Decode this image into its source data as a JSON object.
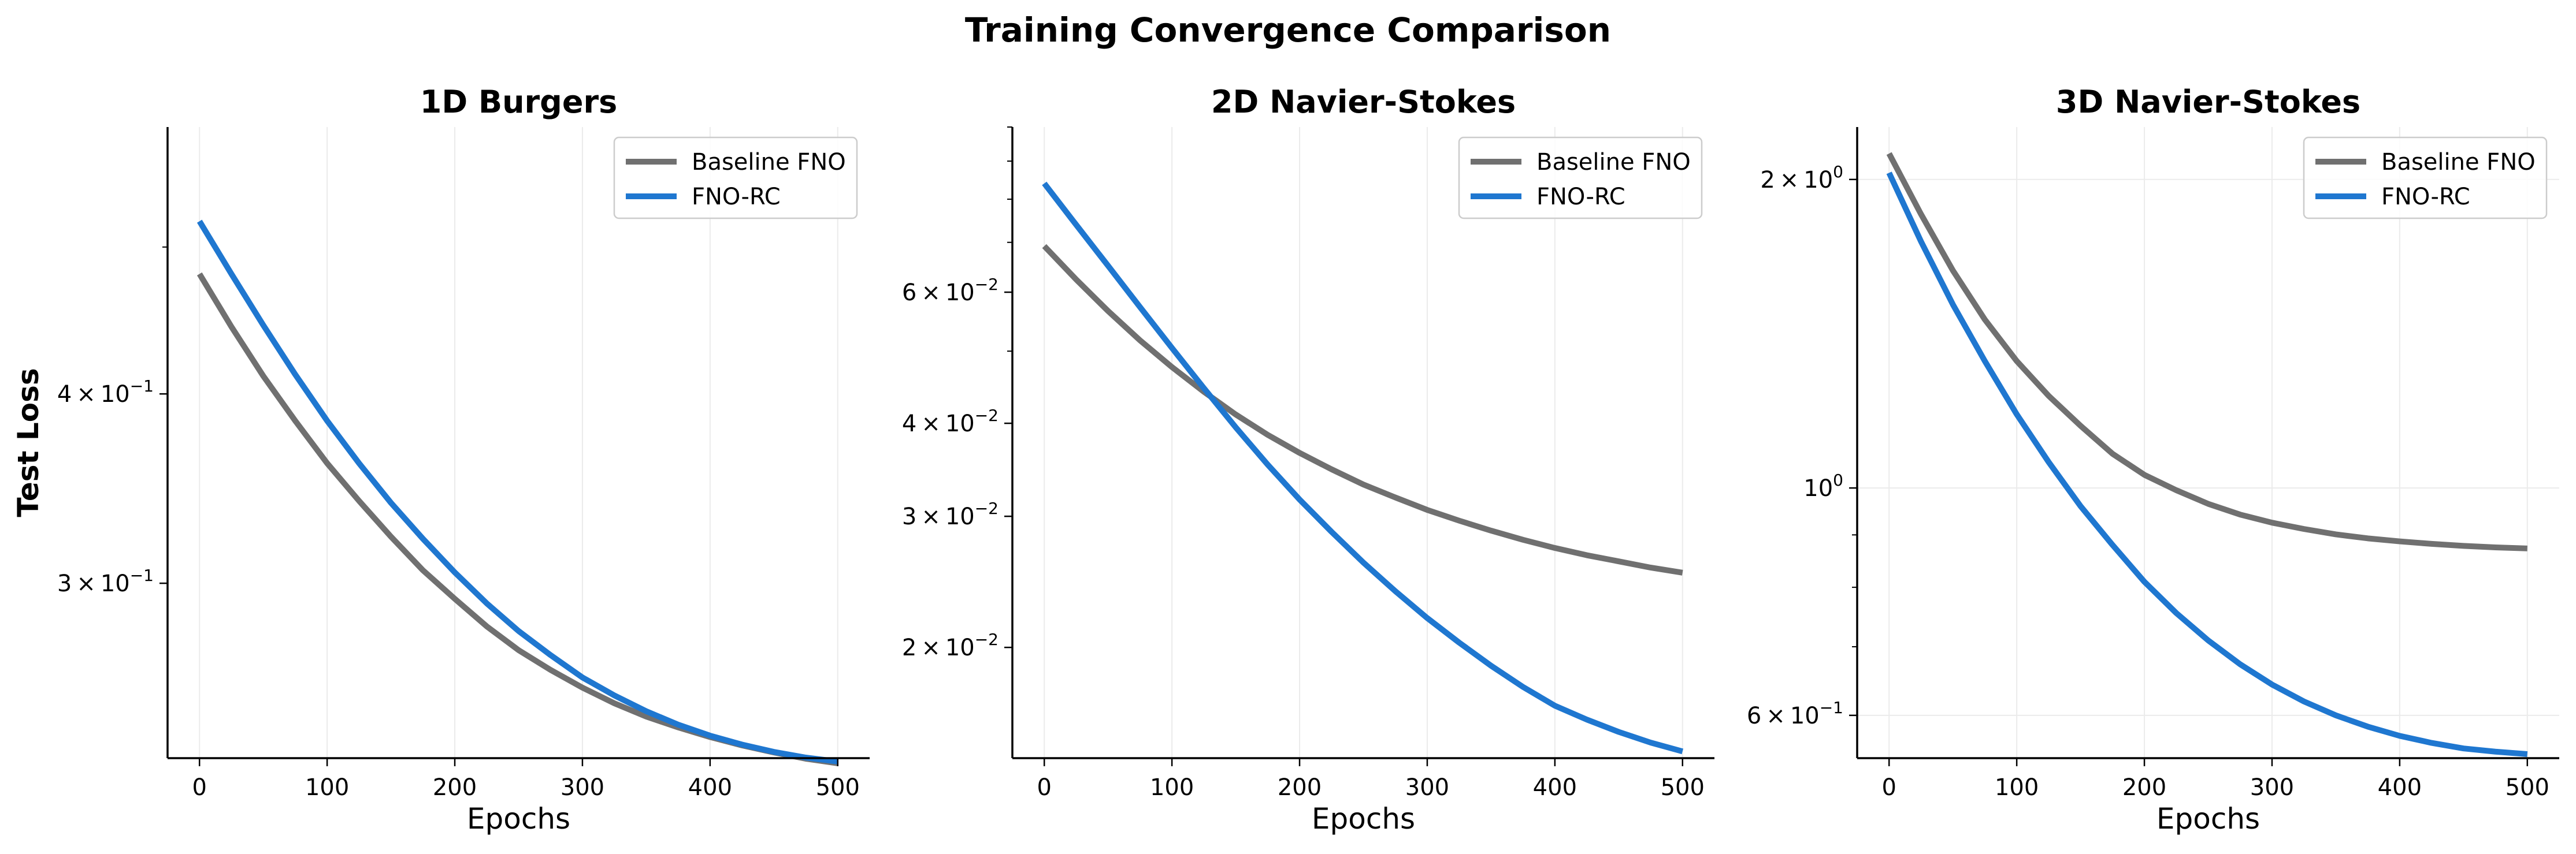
{
  "figure": {
    "suptitle": "Training Convergence Comparison"
  },
  "colors": {
    "baseline": "#707070",
    "fno_rc": "#1f77d0",
    "axis": "#000000",
    "grid": "#ebebeb",
    "legend_border": "#cccccc"
  },
  "chart_data": [
    {
      "type": "line",
      "title": "1D Burgers",
      "xlabel": "Epochs",
      "ylabel": "Test Loss",
      "yscale": "log",
      "xlim": [
        -25,
        525
      ],
      "ylim": [
        0.23,
        0.6
      ],
      "xticks": [
        0,
        100,
        200,
        300,
        400,
        500
      ],
      "yticks": [
        {
          "value": 0.4,
          "mant": "4",
          "exp": "−1"
        },
        {
          "value": 0.3,
          "mant": "3",
          "exp": "−1"
        }
      ],
      "grid": "vertical",
      "legend": "top-right",
      "x": [
        0,
        25,
        50,
        75,
        100,
        125,
        150,
        175,
        200,
        225,
        250,
        275,
        300,
        325,
        350,
        375,
        400,
        425,
        450,
        475,
        500
      ],
      "series": [
        {
          "name": "Baseline FNO",
          "color": "#707070",
          "values": [
            0.48,
            0.443,
            0.411,
            0.384,
            0.36,
            0.34,
            0.322,
            0.306,
            0.293,
            0.281,
            0.271,
            0.263,
            0.256,
            0.25,
            0.245,
            0.241,
            0.2375,
            0.2345,
            0.232,
            0.2298,
            0.2282
          ]
        },
        {
          "name": "FNO-RC",
          "color": "#1f77d0",
          "values": [
            0.52,
            0.48,
            0.444,
            0.412,
            0.384,
            0.36,
            0.339,
            0.321,
            0.305,
            0.291,
            0.279,
            0.269,
            0.26,
            0.253,
            0.247,
            0.242,
            0.238,
            0.2348,
            0.2322,
            0.2302,
            0.2288
          ]
        }
      ]
    },
    {
      "type": "line",
      "title": "2D Navier-Stokes",
      "xlabel": "Epochs",
      "ylabel": "",
      "yscale": "log",
      "xlim": [
        -25,
        525
      ],
      "ylim": [
        0.0142,
        0.1
      ],
      "xticks": [
        0,
        100,
        200,
        300,
        400,
        500
      ],
      "yticks": [
        {
          "value": 0.06,
          "mant": "6",
          "exp": "−2"
        },
        {
          "value": 0.04,
          "mant": "4",
          "exp": "−2"
        },
        {
          "value": 0.03,
          "mant": "3",
          "exp": "−2"
        },
        {
          "value": 0.02,
          "mant": "2",
          "exp": "−2"
        }
      ],
      "grid": "vertical",
      "legend": "top-right",
      "x": [
        0,
        25,
        50,
        75,
        100,
        125,
        150,
        175,
        200,
        225,
        250,
        275,
        300,
        325,
        350,
        375,
        400,
        425,
        450,
        475,
        500
      ],
      "series": [
        {
          "name": "Baseline FNO",
          "color": "#707070",
          "values": [
            0.0692,
            0.0624,
            0.0566,
            0.0517,
            0.0476,
            0.0441,
            0.0411,
            0.0386,
            0.0365,
            0.0347,
            0.0331,
            0.0318,
            0.0306,
            0.0296,
            0.0287,
            0.0279,
            0.0272,
            0.0266,
            0.0261,
            0.0256,
            0.0252
          ]
        },
        {
          "name": "FNO-RC",
          "color": "#1f77d0",
          "values": [
            0.084,
            0.0739,
            0.0651,
            0.0573,
            0.0505,
            0.0446,
            0.0395,
            0.0352,
            0.0316,
            0.0286,
            0.026,
            0.0238,
            0.0219,
            0.0203,
            0.0189,
            0.0177,
            0.0167,
            0.016,
            0.0154,
            0.0149,
            0.0145
          ]
        }
      ]
    },
    {
      "type": "line",
      "title": "3D Navier-Stokes",
      "xlabel": "Epochs",
      "ylabel": "",
      "yscale": "log",
      "xlim": [
        -25,
        525
      ],
      "ylim": [
        0.545,
        2.25
      ],
      "xticks": [
        0,
        100,
        200,
        300,
        400,
        500
      ],
      "yticks": [
        {
          "value": 2.0,
          "mant": "2",
          "exp": "0"
        },
        {
          "value": 1.0,
          "mant": "",
          "exp": "0"
        },
        {
          "value": 0.6,
          "mant": "6",
          "exp": "−1"
        }
      ],
      "grid": "both",
      "legend": "top-right",
      "x": [
        0,
        25,
        50,
        75,
        100,
        125,
        150,
        175,
        200,
        225,
        250,
        275,
        300,
        325,
        350,
        375,
        400,
        425,
        450,
        475,
        500
      ],
      "series": [
        {
          "name": "Baseline FNO",
          "color": "#707070",
          "values": [
            2.12,
            1.85,
            1.63,
            1.46,
            1.33,
            1.23,
            1.15,
            1.08,
            1.03,
            0.995,
            0.965,
            0.942,
            0.925,
            0.912,
            0.901,
            0.893,
            0.887,
            0.882,
            0.878,
            0.875,
            0.873
          ]
        },
        {
          "name": "FNO-RC",
          "color": "#1f77d0",
          "values": [
            2.03,
            1.74,
            1.51,
            1.33,
            1.18,
            1.06,
            0.96,
            0.88,
            0.81,
            0.755,
            0.71,
            0.673,
            0.643,
            0.619,
            0.6,
            0.585,
            0.573,
            0.564,
            0.557,
            0.553,
            0.55
          ]
        }
      ]
    }
  ]
}
